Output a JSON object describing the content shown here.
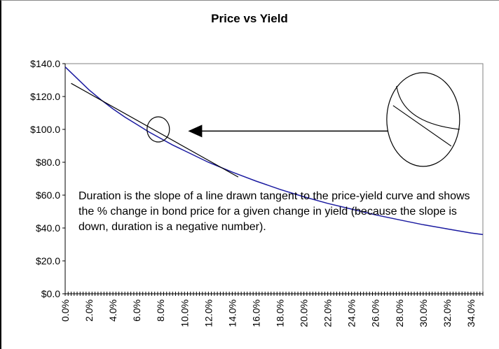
{
  "chart_data": {
    "type": "line",
    "title": "Price vs Yield",
    "xlabel": "",
    "ylabel": "",
    "xlim": [
      0,
      35
    ],
    "ylim": [
      0,
      140
    ],
    "x_tick_labels": [
      "0.0%",
      "2.0%",
      "4.0%",
      "6.0%",
      "8.0%",
      "10.0%",
      "12.0%",
      "14.0%",
      "16.0%",
      "18.0%",
      "20.0%",
      "22.0%",
      "24.0%",
      "26.0%",
      "28.0%",
      "30.0%",
      "32.0%",
      "34.0%"
    ],
    "y_tick_labels": [
      "$0.0",
      "$20.0",
      "$40.0",
      "$60.0",
      "$80.0",
      "$100.0",
      "$120.0",
      "$140.0"
    ],
    "grid": false,
    "series": [
      {
        "color": "#1a1aa0",
        "x": [
          0,
          1,
          2,
          3,
          4,
          5,
          6,
          7,
          8,
          9,
          10,
          12,
          14,
          16,
          18,
          20,
          22,
          24,
          26,
          28,
          30,
          32,
          34,
          35
        ],
        "values": [
          138,
          131,
          124,
          118,
          112.5,
          107.5,
          103,
          98.5,
          94.5,
          90.5,
          87,
          80,
          74,
          68.5,
          63.5,
          59,
          55,
          51.5,
          48,
          45,
          42,
          39.5,
          37,
          36
        ]
      }
    ],
    "tangent_line": {
      "color": "#000000",
      "x": [
        0.5,
        14.5
      ],
      "values": [
        128,
        71
      ]
    },
    "annotation": "Duration is the slope of a line drawn tangent to the price-yield curve and shows the % change in bond price for a given change in yield (because the slope is down, duration is a negative number)."
  }
}
